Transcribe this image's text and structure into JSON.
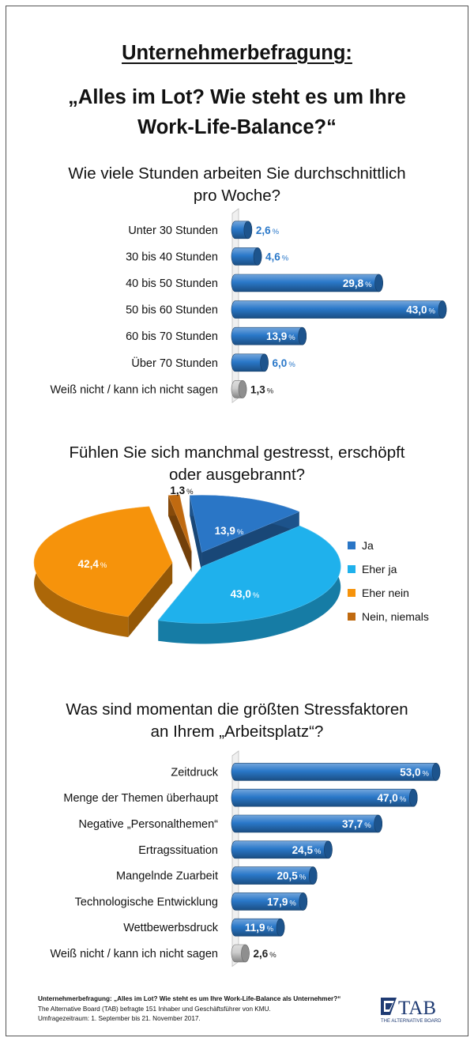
{
  "header": {
    "title": "Unternehmerbefragung:",
    "subtitle_line1": "„Alles im Lot? Wie steht es um Ihre",
    "subtitle_line2": "Work-Life-Balance?“"
  },
  "chart_data": [
    {
      "type": "bar",
      "orientation": "horizontal",
      "title_line1": "Wie viele Stunden arbeiten Sie durchschnittlich",
      "title_line2": "pro Woche?",
      "categories": [
        "Unter 30 Stunden",
        "30 bis 40 Stunden",
        "40 bis 50 Stunden",
        "50 bis 60 Stunden",
        "60 bis 70 Stunden",
        "Über 70 Stunden",
        "Weiß nicht / kann ich nicht sagen"
      ],
      "values": [
        2.6,
        4.6,
        29.8,
        43.0,
        13.9,
        6.0,
        1.3
      ],
      "labels": [
        "2,6",
        "4,6",
        "29,8",
        "43,0",
        "13,9",
        "6,0",
        "1,3"
      ],
      "unit": "%",
      "bar_colors": [
        "#2a78c9",
        "#2a78c9",
        "#2a78c9",
        "#2a78c9",
        "#2a78c9",
        "#2a78c9",
        "#cccccc"
      ],
      "xlim": [
        0,
        43
      ]
    },
    {
      "type": "pie",
      "title_line1": "Fühlen Sie sich manchmal gestresst, erschöpft",
      "title_line2": "oder ausgebrannt?",
      "categories": [
        "Ja",
        "Eher ja",
        "Eher nein",
        "Nein, niemals"
      ],
      "values": [
        13.9,
        43.0,
        42.4,
        1.3
      ],
      "labels": [
        "13,9",
        "43,0",
        "42,4",
        "1,3"
      ],
      "unit": "%",
      "colors": [
        "#2a76c6",
        "#1fb1ec",
        "#f6930b",
        "#c06a10"
      ],
      "legend_position": "right"
    },
    {
      "type": "bar",
      "orientation": "horizontal",
      "title_line1": "Was sind momentan die größten Stressfaktoren",
      "title_line2": "an Ihrem „Arbeitsplatz“?",
      "categories": [
        "Zeitdruck",
        "Menge der Themen überhaupt",
        "Negative „Personalthemen“",
        "Ertragssituation",
        "Mangelnde Zuarbeit",
        "Technologische Entwicklung",
        "Wettbewerbsdruck",
        "Weiß nicht / kann ich nicht sagen"
      ],
      "values": [
        53.0,
        47.0,
        37.7,
        24.5,
        20.5,
        17.9,
        11.9,
        2.6
      ],
      "labels": [
        "53,0",
        "47,0",
        "37,7",
        "24,5",
        "20,5",
        "17,9",
        "11,9",
        "2,6"
      ],
      "unit": "%",
      "bar_colors": [
        "#2a78c9",
        "#2a78c9",
        "#2a78c9",
        "#2a78c9",
        "#2a78c9",
        "#2a78c9",
        "#2a78c9",
        "#cccccc"
      ],
      "xlim": [
        0,
        53
      ]
    }
  ],
  "footer": {
    "line1": "Unternehmerbefragung: „Alles im Lot? Wie steht es um Ihre Work-Life-Balance als Unternehmer?“",
    "line2": "The Alternative Board (TAB) befragte 151 Inhaber und Geschäftsführer von KMU.",
    "line3": "Umfragezeitraum: 1. September bis 21. November 2017."
  },
  "logo": {
    "text": "TAB",
    "tagline": "THE ALTERNATIVE BOARD",
    "color": "#1f3b73"
  }
}
